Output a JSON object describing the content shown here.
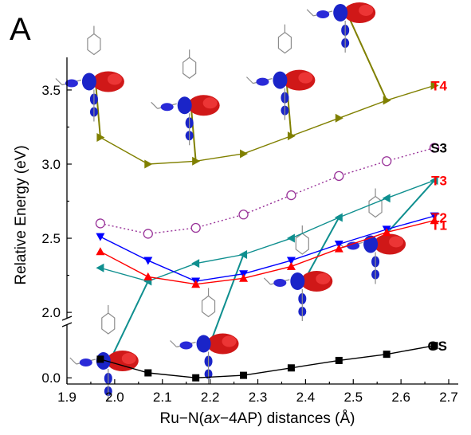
{
  "chart_data": {
    "type": "line",
    "panel_label": "A",
    "xlabel_parts": [
      "Ru−N(",
      "ax",
      "−4AP) distances (Å)"
    ],
    "ylabel": "Relative Energy (eV)",
    "x_ticks": [
      "1.9",
      "2.0",
      "2.1",
      "2.2",
      "2.3",
      "2.4",
      "2.5",
      "2.6",
      "2.7"
    ],
    "y_ticks_upper": [
      "2.0",
      "2.5",
      "3.0",
      "3.5"
    ],
    "y_ticks_lower": [
      "0.0"
    ],
    "xlim": [
      1.9,
      2.72
    ],
    "ylim_upper": [
      1.85,
      3.72
    ],
    "ylim_lower": [
      -0.05,
      0.22
    ],
    "axis_break": true,
    "x": [
      1.97,
      2.07,
      2.17,
      2.27,
      2.37,
      2.47,
      2.57,
      2.67
    ],
    "series": [
      {
        "name": "T4",
        "color": "#808000",
        "label_color": "#ff0000",
        "marker": "triangle-right",
        "line": "solid",
        "values": [
          3.18,
          3.0,
          3.02,
          3.07,
          3.19,
          3.31,
          3.43,
          3.53
        ]
      },
      {
        "name": "S3",
        "color": "#993399",
        "label_color": "#000000",
        "marker": "open-circle",
        "line": "dotted",
        "values": [
          2.6,
          2.53,
          2.57,
          2.66,
          2.79,
          2.92,
          3.02,
          3.11
        ]
      },
      {
        "name": "T3",
        "color": "#0f8f8f",
        "label_color": "#ff0000",
        "marker": "triangle-left",
        "line": "solid",
        "values": [
          2.3,
          2.21,
          2.33,
          2.39,
          2.5,
          2.64,
          2.77,
          2.89
        ]
      },
      {
        "name": "T2",
        "color": "#0000ff",
        "label_color": "#ff0000",
        "marker": "triangle-down",
        "line": "solid",
        "values": [
          2.51,
          2.35,
          2.21,
          2.26,
          2.35,
          2.46,
          2.56,
          2.65
        ]
      },
      {
        "name": "T1",
        "color": "#ff0000",
        "label_color": "#ff0000",
        "marker": "triangle-up",
        "line": "solid",
        "values": [
          2.41,
          2.24,
          2.19,
          2.23,
          2.31,
          2.43,
          2.54,
          2.62
        ]
      },
      {
        "name": "GS",
        "color": "#000000",
        "label_color": "#000000",
        "marker": "square",
        "line": "solid",
        "axis": "lower",
        "values": [
          0.15,
          0.04,
          0.0,
          0.02,
          0.08,
          0.14,
          0.19,
          0.26
        ]
      }
    ],
    "orbital_insets": [
      {
        "at_x": 1.97,
        "series": "T4"
      },
      {
        "at_x": 2.17,
        "series": "T4"
      },
      {
        "at_x": 2.37,
        "series": "T4"
      },
      {
        "at_x": 2.57,
        "series": "T4"
      },
      {
        "at_x": 2.07,
        "series": "T3"
      },
      {
        "at_x": 2.27,
        "series": "T3"
      },
      {
        "at_x": 2.47,
        "series": "T3"
      },
      {
        "at_x": 2.67,
        "series": "T3"
      }
    ]
  }
}
